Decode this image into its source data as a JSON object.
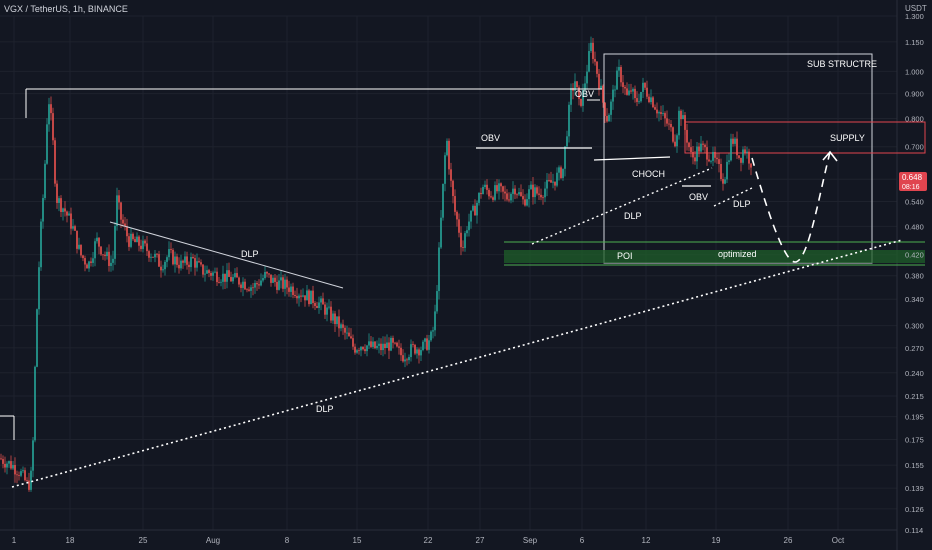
{
  "header": {
    "symbol": "VGX / TetherUS, 1h, BINANCE",
    "unit": "USDT"
  },
  "colors": {
    "bg": "#131722",
    "up": "#26a69a",
    "down": "#ef5350",
    "grid": "#1e222d",
    "annotation": "#ffffff",
    "supply": "#e0454f",
    "poi": "#1f5f2a"
  },
  "chart_data": {
    "type": "candlestick",
    "price_axis": {
      "scale": "log",
      "ticks": [
        "1.300",
        "1.150",
        "1.000",
        "0.900",
        "0.800",
        "0.700",
        "0.600",
        "0.540",
        "0.480",
        "0.420",
        "0.380",
        "0.340",
        "0.300",
        "0.270",
        "0.240",
        "0.215",
        "0.195",
        "0.175",
        "0.155",
        "0.139",
        "0.126",
        "0.114"
      ],
      "ylim": [
        0.114,
        1.3
      ]
    },
    "time_axis": {
      "ticks": [
        "1",
        "18",
        "25",
        "Aug",
        "8",
        "15",
        "22",
        "27",
        "Sep",
        "6",
        "12",
        "19",
        "26",
        "Oct"
      ]
    },
    "current_price": {
      "value": "0.648",
      "countdown": "08:16"
    },
    "series": [
      {
        "from": "1",
        "to": "Sep 22",
        "path": [
          [
            0,
            0.16
          ],
          [
            3,
            0.155
          ],
          [
            5,
            0.15
          ],
          [
            7,
            0.14
          ],
          [
            8,
            0.15
          ],
          [
            9,
            0.3
          ],
          [
            10,
            0.45
          ],
          [
            11,
            0.6
          ],
          [
            12,
            0.9
          ],
          [
            13,
            0.75
          ],
          [
            14,
            0.55
          ],
          [
            16,
            0.52
          ],
          [
            18,
            0.48
          ],
          [
            20,
            0.42
          ],
          [
            22,
            0.4
          ],
          [
            24,
            0.45
          ],
          [
            26,
            0.42
          ],
          [
            28,
            0.4
          ],
          [
            29,
            0.55
          ],
          [
            30,
            0.5
          ],
          [
            32,
            0.45
          ],
          [
            35,
            0.44
          ],
          [
            38,
            0.42
          ],
          [
            40,
            0.4
          ],
          [
            42,
            0.42
          ],
          [
            45,
            0.4
          ],
          [
            48,
            0.41
          ],
          [
            50,
            0.39
          ],
          [
            55,
            0.38
          ],
          [
            60,
            0.37
          ],
          [
            63,
            0.36
          ],
          [
            66,
            0.38
          ],
          [
            68,
            0.37
          ],
          [
            72,
            0.36
          ],
          [
            75,
            0.35
          ],
          [
            78,
            0.34
          ],
          [
            80,
            0.33
          ],
          [
            83,
            0.31
          ],
          [
            85,
            0.295
          ],
          [
            87,
            0.28
          ],
          [
            88,
            0.27
          ],
          [
            90,
            0.275
          ],
          [
            93,
            0.27
          ],
          [
            95,
            0.27
          ],
          [
            97,
            0.275
          ],
          [
            100,
            0.26
          ],
          [
            103,
            0.27
          ],
          [
            105,
            0.27
          ],
          [
            107,
            0.28
          ],
          [
            108,
            0.3
          ],
          [
            109,
            0.4
          ],
          [
            110,
            0.55
          ],
          [
            111,
            0.74
          ],
          [
            112,
            0.6
          ],
          [
            113,
            0.52
          ],
          [
            114,
            0.48
          ],
          [
            115,
            0.43
          ],
          [
            116,
            0.48
          ],
          [
            118,
            0.52
          ],
          [
            120,
            0.58
          ],
          [
            122,
            0.56
          ],
          [
            124,
            0.57
          ],
          [
            126,
            0.55
          ],
          [
            128,
            0.58
          ],
          [
            130,
            0.54
          ],
          [
            132,
            0.57
          ],
          [
            134,
            0.56
          ],
          [
            136,
            0.58
          ],
          [
            138,
            0.6
          ],
          [
            140,
            0.63
          ],
          [
            141,
            0.76
          ],
          [
            142,
            0.9
          ],
          [
            143,
            0.96
          ],
          [
            144,
            0.85
          ],
          [
            145,
            0.9
          ],
          [
            146,
            1.02
          ],
          [
            147,
            1.13
          ],
          [
            148,
            1.04
          ],
          [
            149,
            0.95
          ],
          [
            150,
            0.86
          ],
          [
            151,
            0.8
          ],
          [
            152,
            0.86
          ],
          [
            153,
            0.95
          ],
          [
            154,
            1.0
          ],
          [
            155,
            0.94
          ],
          [
            156,
            0.88
          ],
          [
            157,
            0.92
          ],
          [
            158,
            0.86
          ],
          [
            160,
            0.93
          ],
          [
            162,
            0.88
          ],
          [
            164,
            0.82
          ],
          [
            166,
            0.78
          ],
          [
            168,
            0.72
          ],
          [
            169,
            0.84
          ],
          [
            170,
            0.78
          ],
          [
            171,
            0.72
          ],
          [
            172,
            0.66
          ],
          [
            174,
            0.7
          ],
          [
            176,
            0.68
          ],
          [
            178,
            0.65
          ],
          [
            179,
            0.62
          ],
          [
            180,
            0.6
          ],
          [
            181,
            0.66
          ],
          [
            182,
            0.73
          ],
          [
            183,
            0.7
          ],
          [
            184,
            0.66
          ],
          [
            185,
            0.7
          ],
          [
            186,
            0.67
          ],
          [
            187,
            0.648
          ]
        ]
      }
    ],
    "annotations": [
      "SUB STRUCTRE",
      "OBV",
      "OBV",
      "OBV",
      "CHOCH",
      "DLP",
      "DLP",
      "DLP",
      "DLP",
      "SUPPLY",
      "POI",
      "optimized"
    ]
  }
}
